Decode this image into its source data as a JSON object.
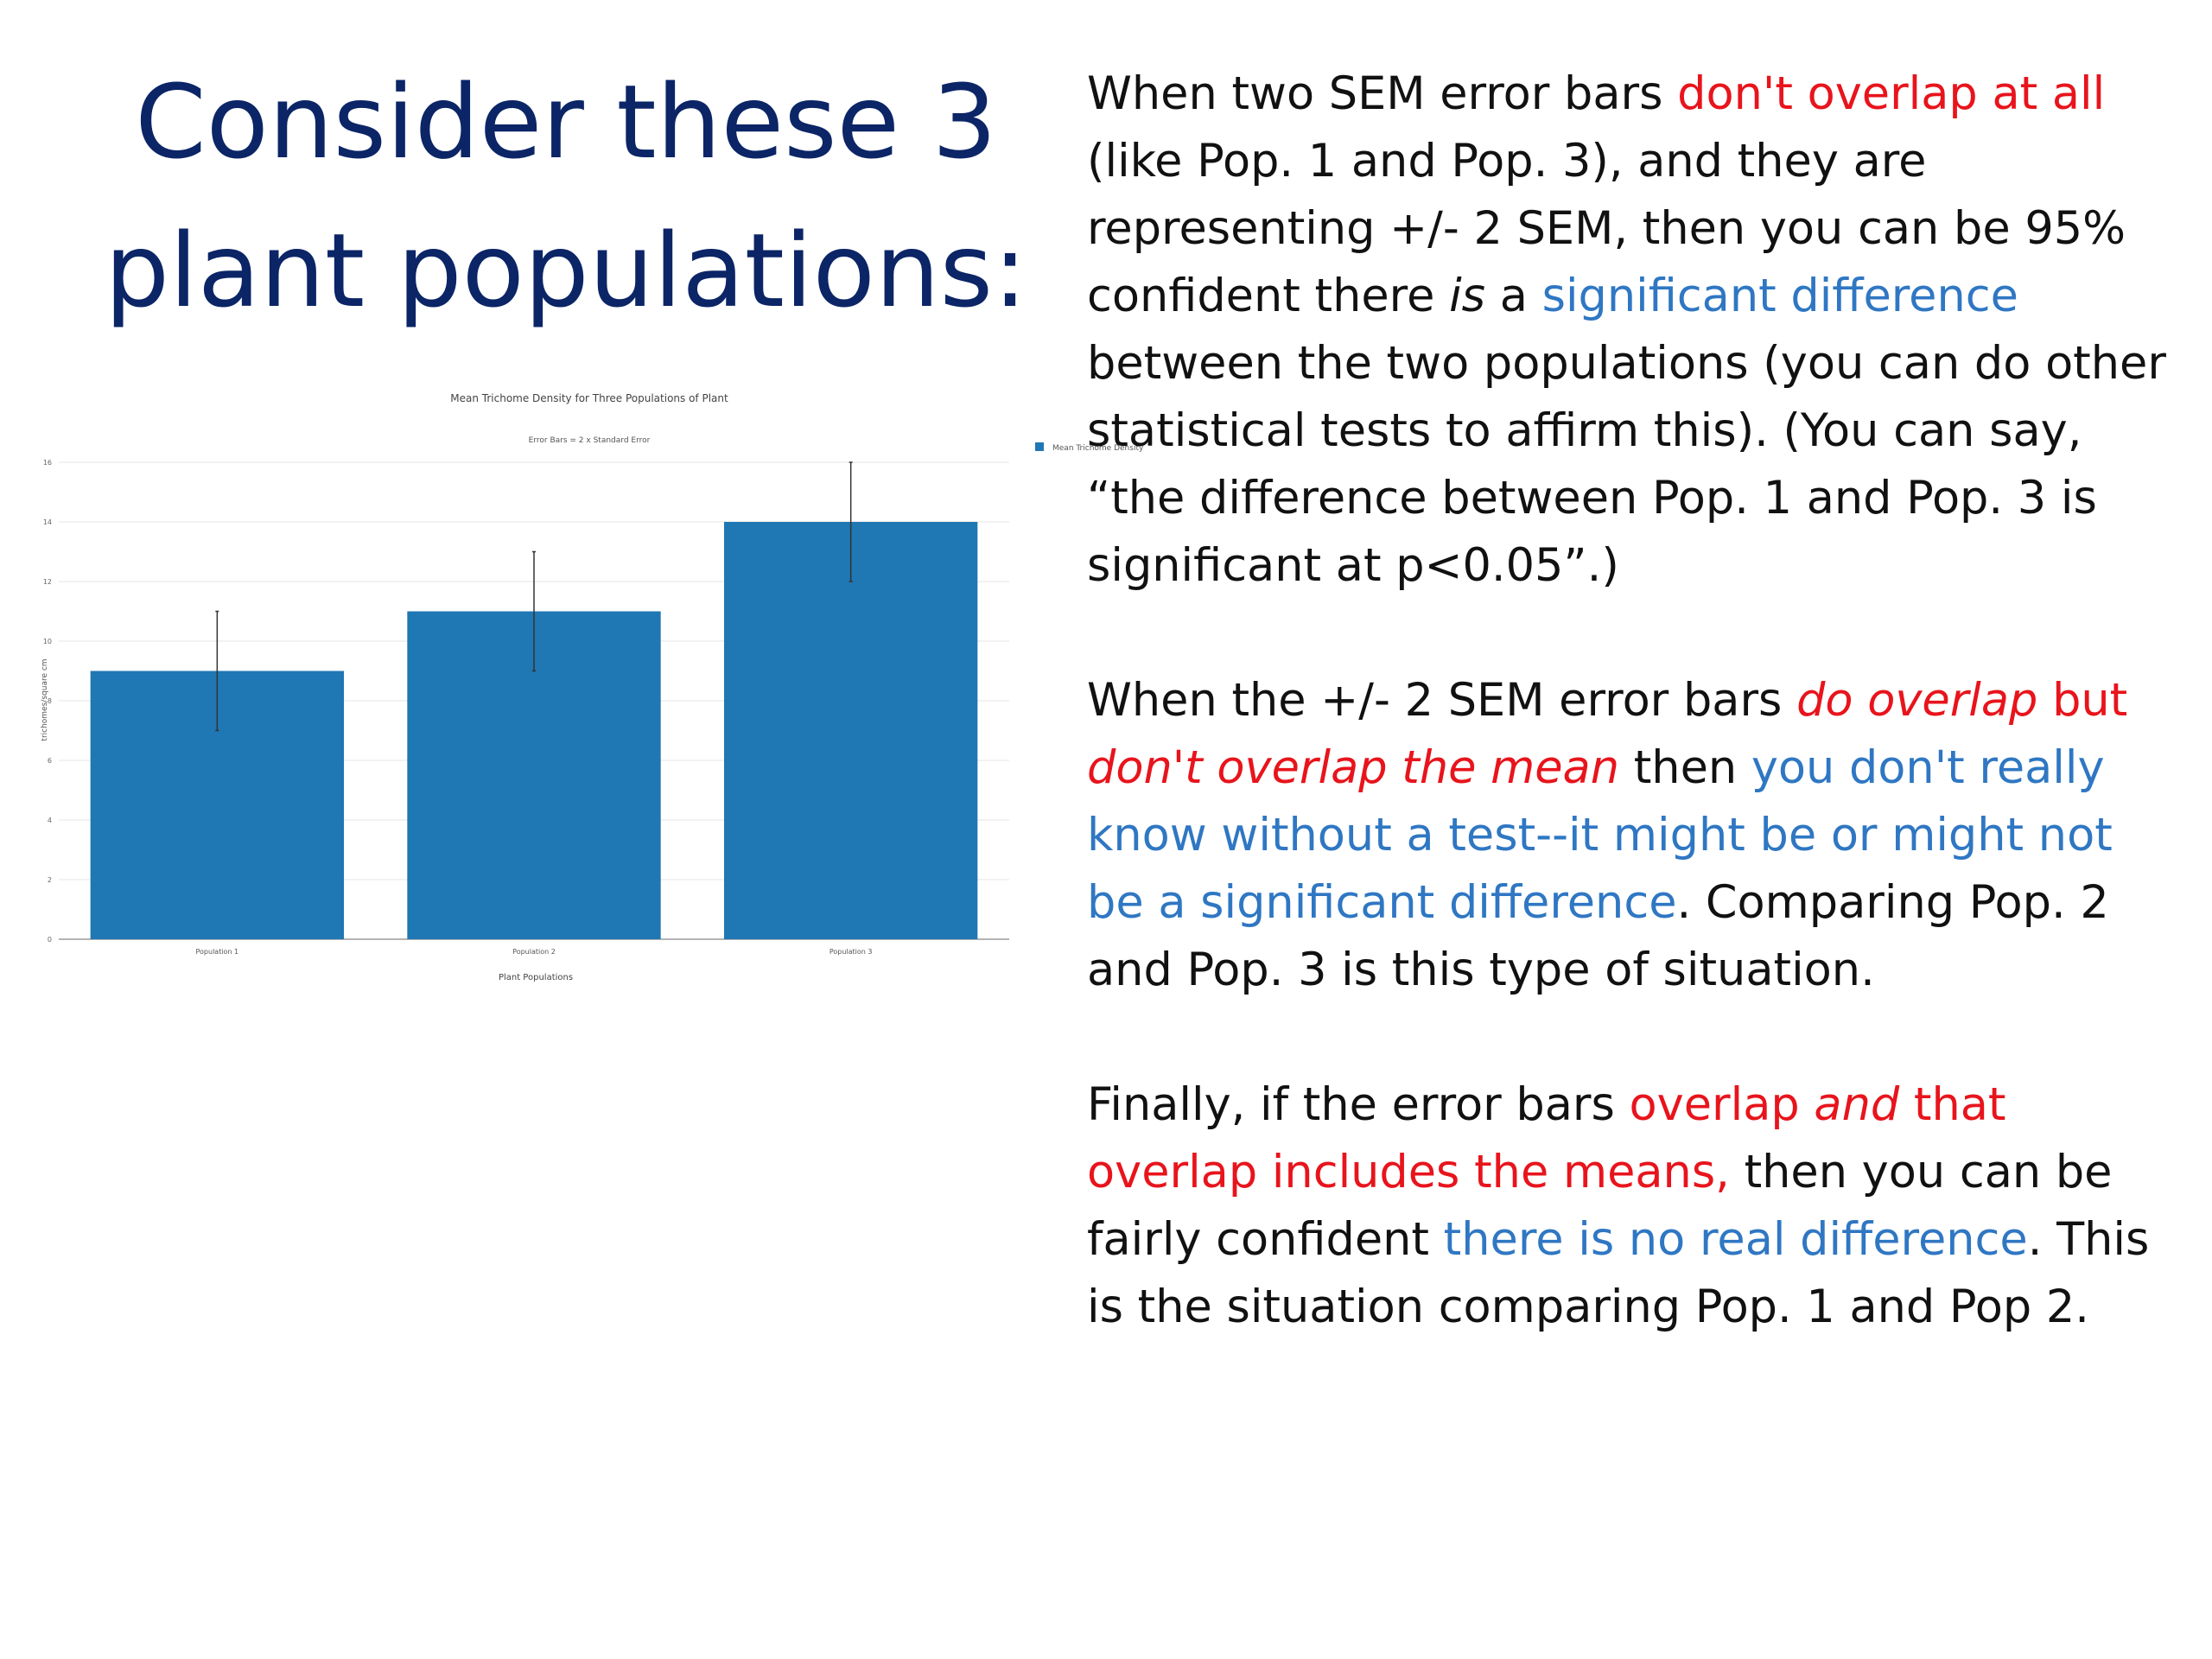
{
  "slide": {
    "title_line1": "Consider these 3",
    "title_line2": "plant populations:"
  },
  "paragraphs": {
    "p1": {
      "s1": "When two SEM error bars ",
      "s2": "don't overlap at all",
      "s3": " (like Pop. 1 and Pop. 3), and they are representing +/- 2 SEM, then you can be 95% confident there ",
      "s4": "is",
      "s5": " a ",
      "s6": "significant difference",
      "s7": " between the two populations (you can do other statistical tests to affirm this). (You can say, “the difference between Pop. 1 and Pop. 3 is significant at p<0.05”.)"
    },
    "p2": {
      "s1": "When the +/- 2 SEM error bars ",
      "s2": "do overlap",
      "s3": " but ",
      "s4": "don't overlap the mean",
      "s5": " then ",
      "s6": "you don't really know without a test--it might be or might not be a significant difference",
      "s7": ".  Comparing Pop. 2 and Pop. 3 is this type of situation."
    },
    "p3": {
      "s1": "Finally, if the error bars ",
      "s2": "overlap ",
      "s3": "and",
      "s4": " that overlap includes the means,",
      "s5": " then you can be fairly confident ",
      "s6": "there is no real difference",
      "s7": ".  This is the situation comparing Pop. 1 and Pop 2."
    }
  },
  "colors": {
    "title": "#0b2566",
    "red_text": "#e8141c",
    "blue_text": "#2f77c3",
    "bar": "#1f77b4"
  },
  "chart_data": {
    "type": "bar",
    "title": "Mean Trichome Density for Three Populations of Plant",
    "subtitle": "Error Bars = 2 x  Standard Error",
    "categories": [
      "Population 1",
      "Population 2",
      "Population 3"
    ],
    "series": [
      {
        "name": "Mean Trichome Density",
        "values": [
          9,
          11,
          14
        ],
        "error": [
          2,
          2,
          2
        ]
      }
    ],
    "xlabel": "Plant Populations",
    "ylabel": "trichomes/square cm",
    "ylim": [
      0,
      16
    ],
    "yticks": [
      0,
      2,
      4,
      6,
      8,
      10,
      12,
      14,
      16
    ],
    "grid": true,
    "legend": "top-right"
  }
}
